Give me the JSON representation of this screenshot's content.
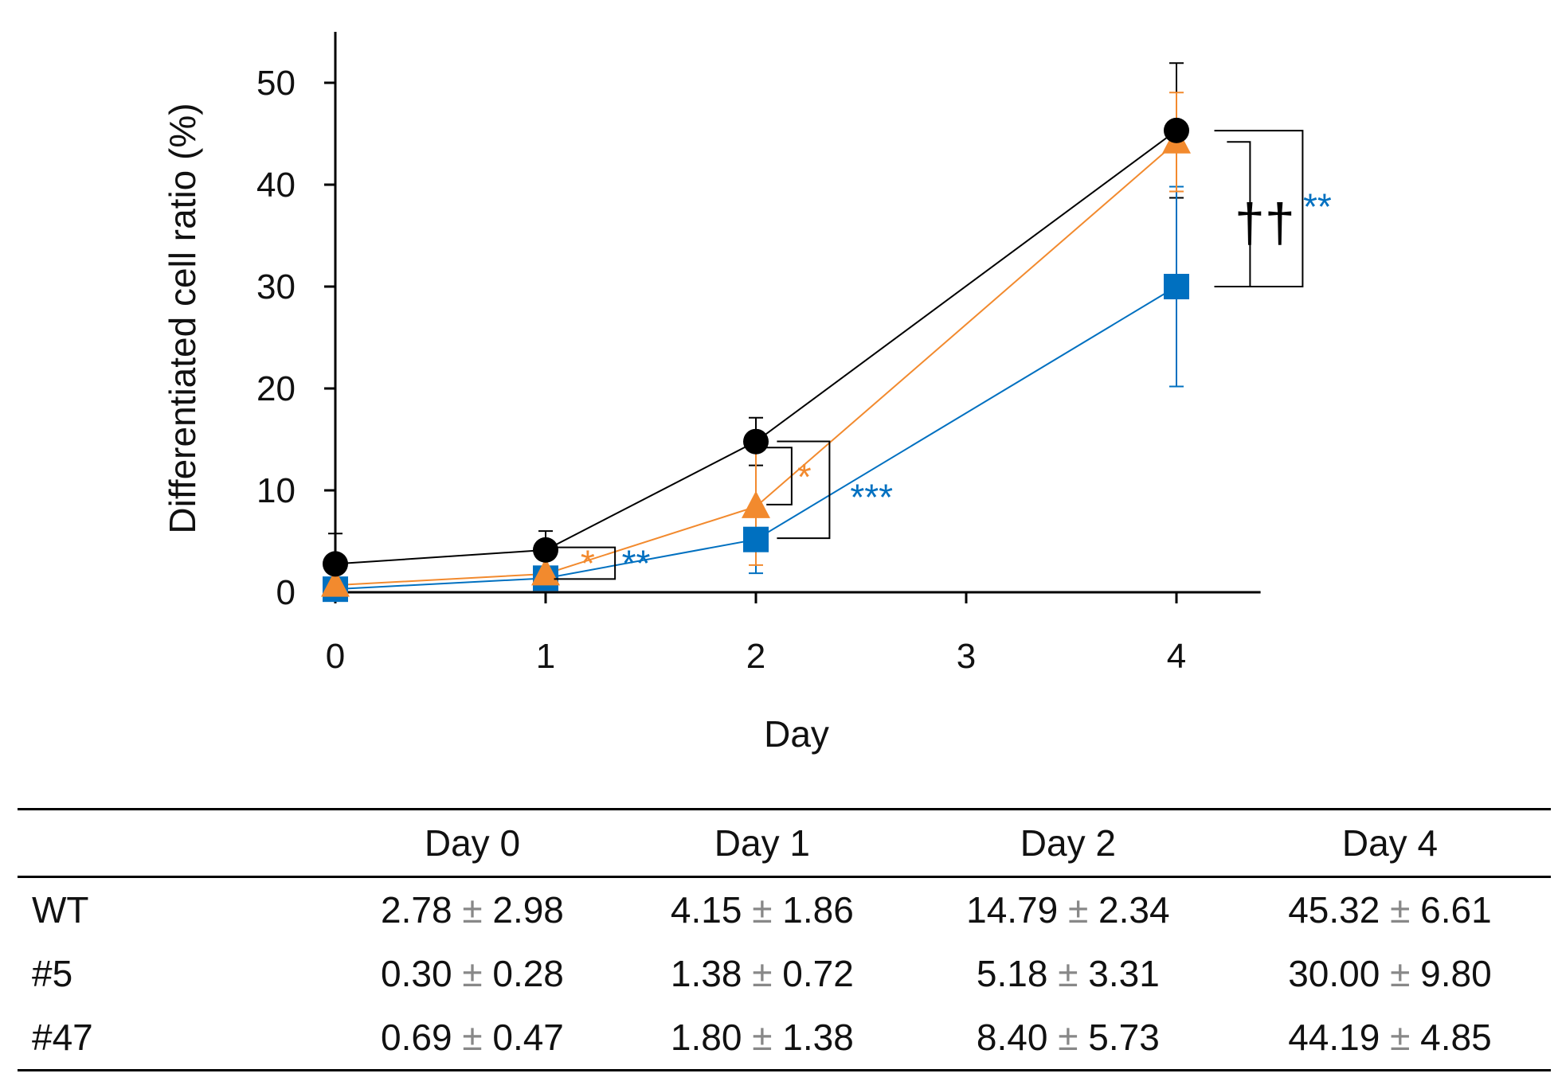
{
  "chart_data": {
    "type": "line",
    "title": "",
    "xlabel": "Day",
    "ylabel": "Differentiated cell ratio (%)",
    "xlim": [
      0,
      4.4
    ],
    "ylim": [
      0,
      55
    ],
    "x_ticks": [
      "0",
      "1",
      "2",
      "3",
      "4"
    ],
    "y_ticks": [
      "0",
      "10",
      "20",
      "30",
      "40",
      "50"
    ],
    "legend": "none",
    "series": [
      {
        "color": "#000000",
        "marker": "circle",
        "x": [
          0,
          1,
          2,
          4
        ],
        "y": [
          2.78,
          4.15,
          14.79,
          45.32
        ],
        "error": [
          2.98,
          1.86,
          2.34,
          6.61
        ]
      },
      {
        "color": "#0070c0",
        "marker": "square",
        "x": [
          0,
          1,
          2,
          4
        ],
        "y": [
          0.3,
          1.38,
          5.18,
          30.0
        ],
        "error": [
          0.28,
          0.72,
          3.31,
          9.8
        ]
      },
      {
        "color": "#f28a2e",
        "marker": "triangle",
        "x": [
          0,
          1,
          2,
          4
        ],
        "y": [
          0.69,
          1.8,
          8.4,
          44.19
        ],
        "error": [
          0.47,
          1.38,
          5.73,
          4.85
        ]
      }
    ],
    "annotations": [
      {
        "text": "*",
        "color": "#f28a2e",
        "x": 1.2,
        "y": 3.0
      },
      {
        "text": "**",
        "color": "#0070c0",
        "x": 1.43,
        "y": 3.0
      },
      {
        "text": "*",
        "color": "#f28a2e",
        "x": 2.23,
        "y": 11.5
      },
      {
        "text": "***",
        "color": "#0070c0",
        "x": 2.55,
        "y": 9.5
      },
      {
        "text": "††",
        "color": "#000000",
        "x": 4.42,
        "y": 36.0
      },
      {
        "text": "**",
        "color": "#0070c0",
        "x": 4.67,
        "y": 38.0
      }
    ]
  },
  "table": {
    "headers": [
      "",
      "Day 0",
      "Day 1",
      "Day 2",
      "Day 4"
    ],
    "pm_symbol": "±",
    "rows": [
      {
        "label": "WT",
        "cells": [
          {
            "mean": "2.78",
            "sd": "2.98"
          },
          {
            "mean": "4.15",
            "sd": "1.86"
          },
          {
            "mean": "14.79",
            "sd": "2.34"
          },
          {
            "mean": "45.32",
            "sd": "6.61"
          }
        ]
      },
      {
        "label": "#5",
        "cells": [
          {
            "mean": "0.30",
            "sd": "0.28"
          },
          {
            "mean": "1.38",
            "sd": "0.72"
          },
          {
            "mean": "5.18",
            "sd": "3.31"
          },
          {
            "mean": "30.00",
            "sd": "9.80"
          }
        ]
      },
      {
        "label": "#47",
        "cells": [
          {
            "mean": "0.69",
            "sd": "0.47"
          },
          {
            "mean": "1.80",
            "sd": "1.38"
          },
          {
            "mean": "8.40",
            "sd": "5.73"
          },
          {
            "mean": "44.19",
            "sd": "4.85"
          }
        ]
      }
    ]
  }
}
